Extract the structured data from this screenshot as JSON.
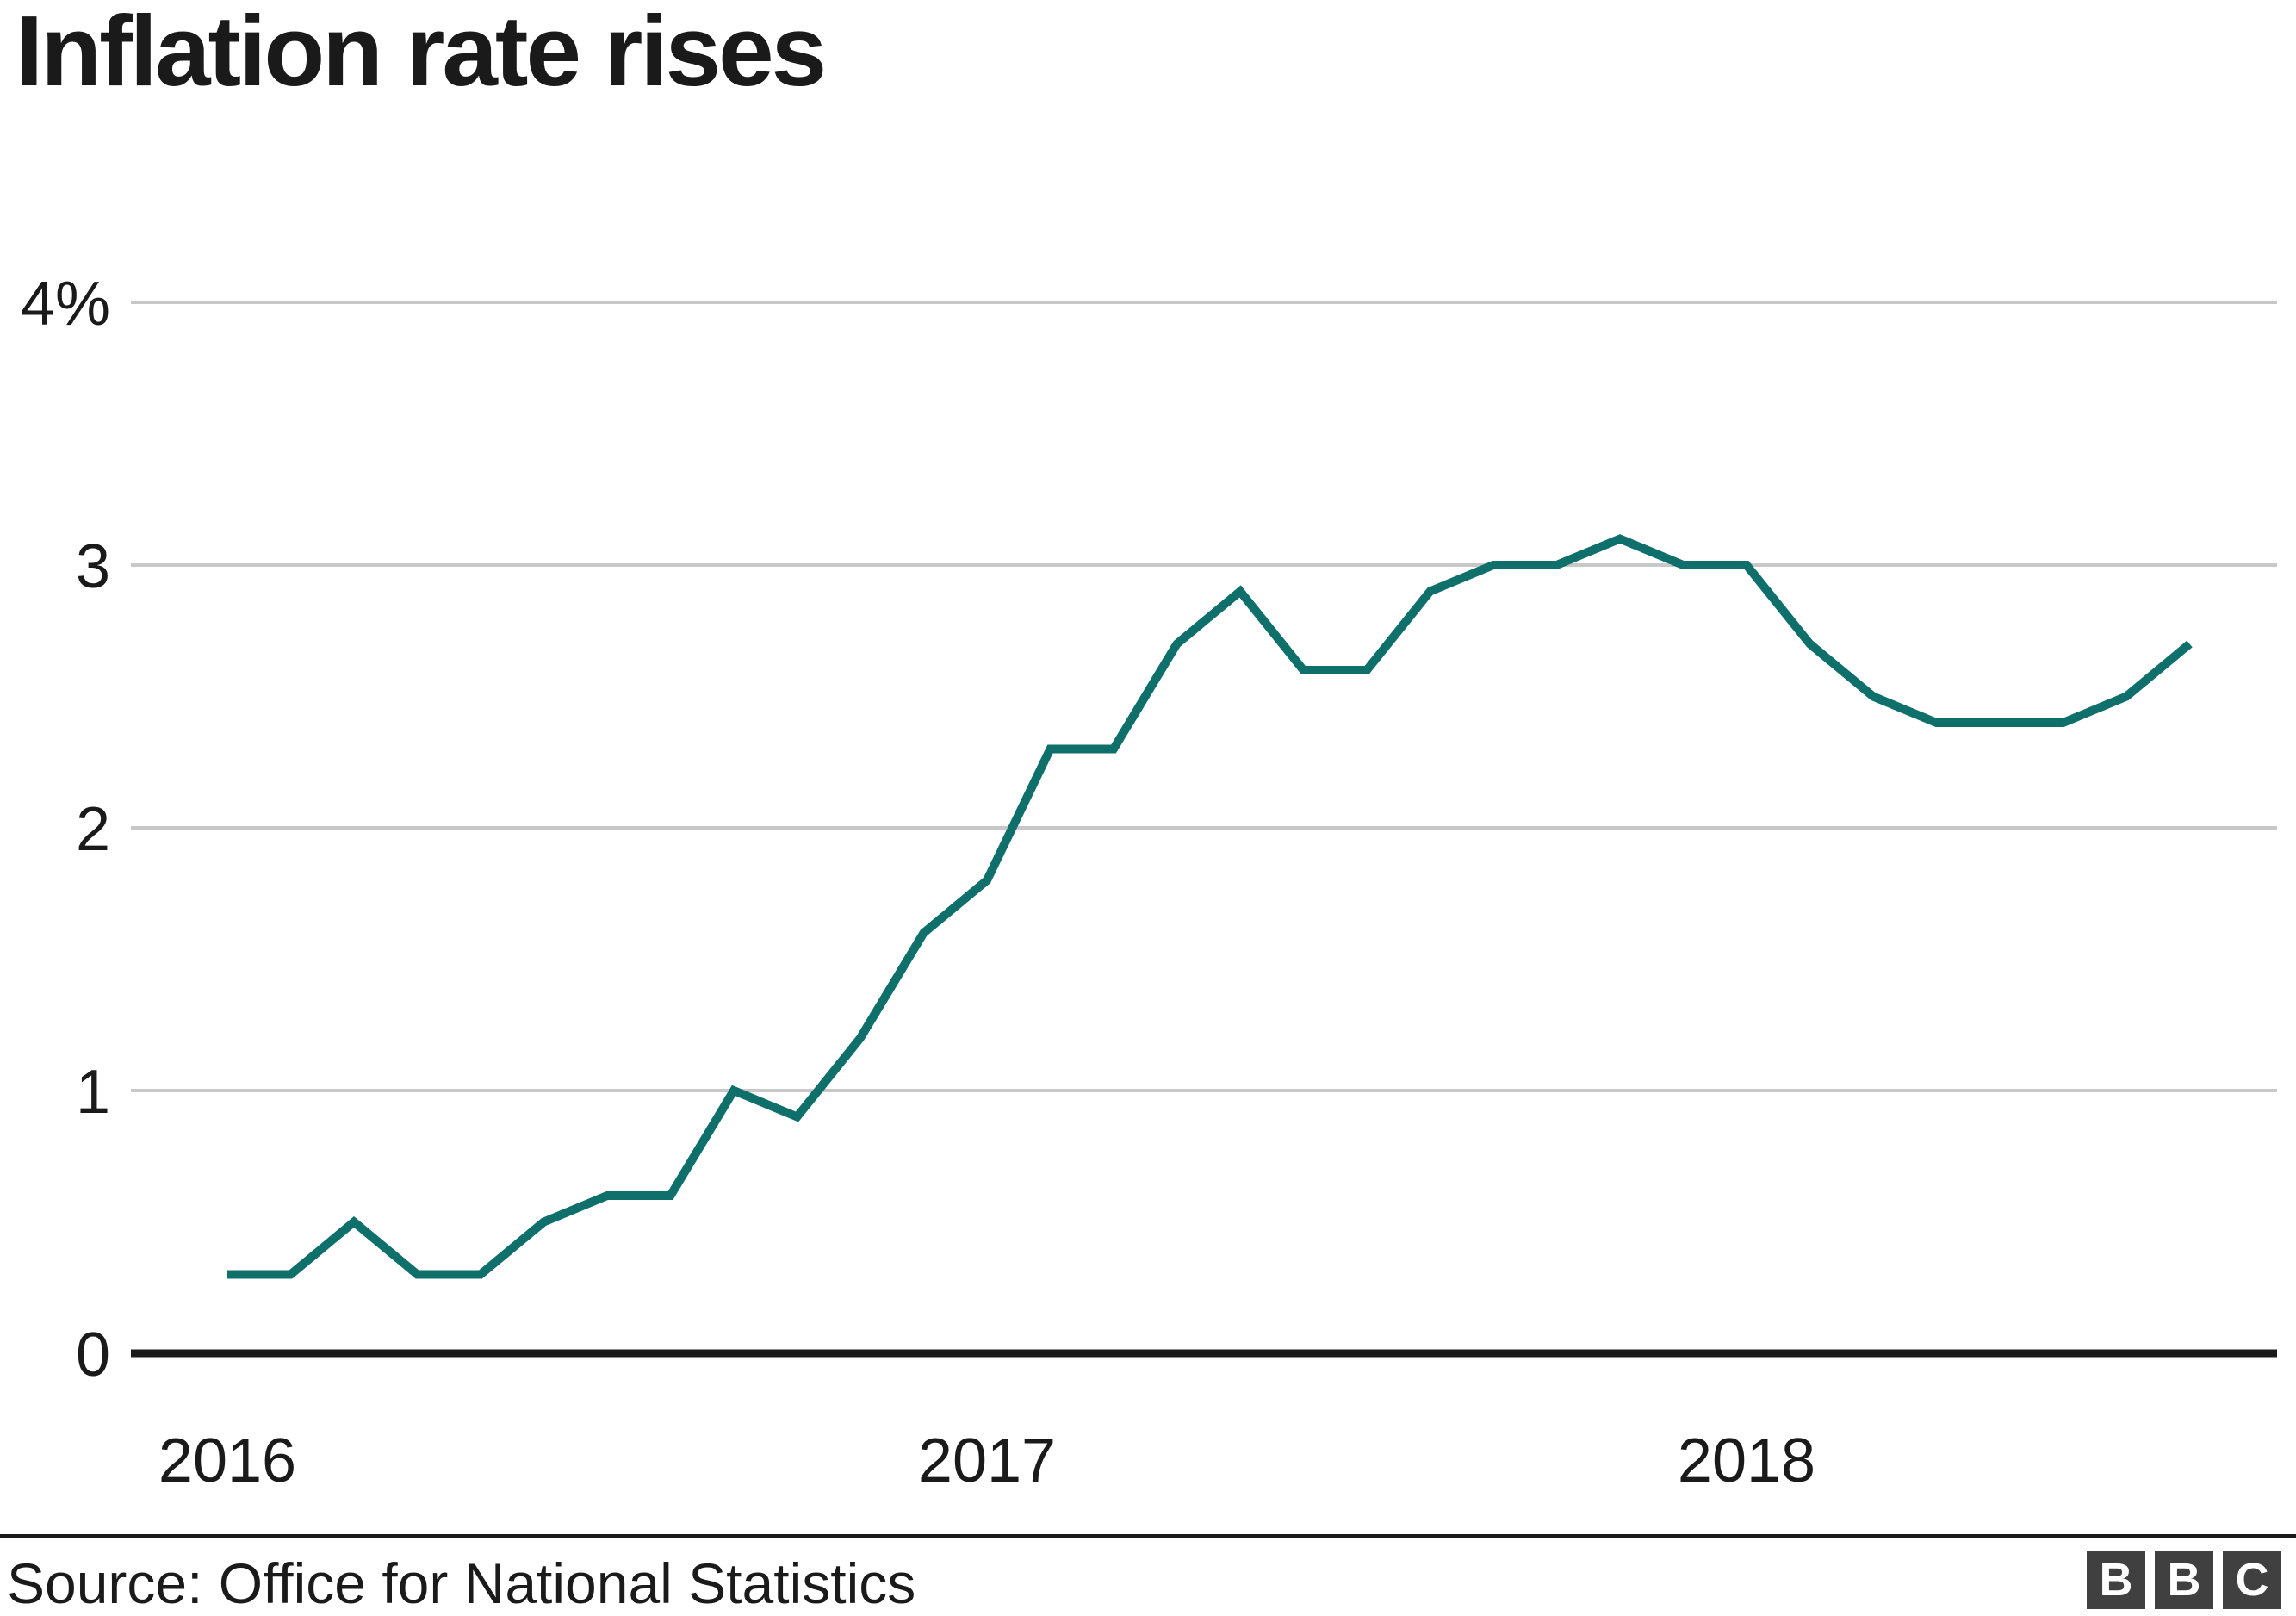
{
  "title": "Inflation rate rises",
  "source": {
    "label": "Source: Office for National Statistics"
  },
  "logo": {
    "letters": [
      "B",
      "B",
      "C"
    ],
    "block_color": "#404040",
    "letter_color": "#ffffff"
  },
  "chart_data": {
    "type": "line",
    "title": "Inflation rate rises",
    "xlabel": "",
    "ylabel": "",
    "ylim": [
      0,
      4
    ],
    "grid": "horizontal",
    "legend": "none",
    "line_color": "#0f706b",
    "grid_color": "#c8c8c8",
    "axis_color": "#1a1a1a",
    "text_color": "#1a1a1a",
    "x": [
      "Jan 2016",
      "Feb 2016",
      "Mar 2016",
      "Apr 2016",
      "May 2016",
      "Jun 2016",
      "Jul 2016",
      "Aug 2016",
      "Sep 2016",
      "Oct 2016",
      "Nov 2016",
      "Dec 2016",
      "Jan 2017",
      "Feb 2017",
      "Mar 2017",
      "Apr 2017",
      "May 2017",
      "Jun 2017",
      "Jul 2017",
      "Aug 2017",
      "Sep 2017",
      "Oct 2017",
      "Nov 2017",
      "Dec 2017",
      "Jan 2018",
      "Feb 2018",
      "Mar 2018",
      "Apr 2018",
      "May 2018",
      "Jun 2018",
      "Jul 2018",
      "Aug 2018"
    ],
    "values": [
      0.3,
      0.3,
      0.5,
      0.3,
      0.3,
      0.5,
      0.6,
      0.6,
      1.0,
      0.9,
      1.2,
      1.6,
      1.8,
      2.3,
      2.3,
      2.7,
      2.9,
      2.6,
      2.6,
      2.9,
      3.0,
      3.0,
      3.1,
      3.0,
      3.0,
      2.7,
      2.5,
      2.4,
      2.4,
      2.4,
      2.5,
      2.7
    ],
    "y_axis": {
      "ticks": [
        {
          "value": 0,
          "label": "0"
        },
        {
          "value": 1,
          "label": "1"
        },
        {
          "value": 2,
          "label": "2"
        },
        {
          "value": 3,
          "label": "3"
        },
        {
          "value": 4,
          "label": "4%"
        }
      ]
    },
    "x_axis": {
      "ticks": [
        {
          "label": "2016",
          "month_index": 0
        },
        {
          "label": "2017",
          "month_index": 12
        },
        {
          "label": "2018",
          "month_index": 24
        }
      ]
    }
  }
}
